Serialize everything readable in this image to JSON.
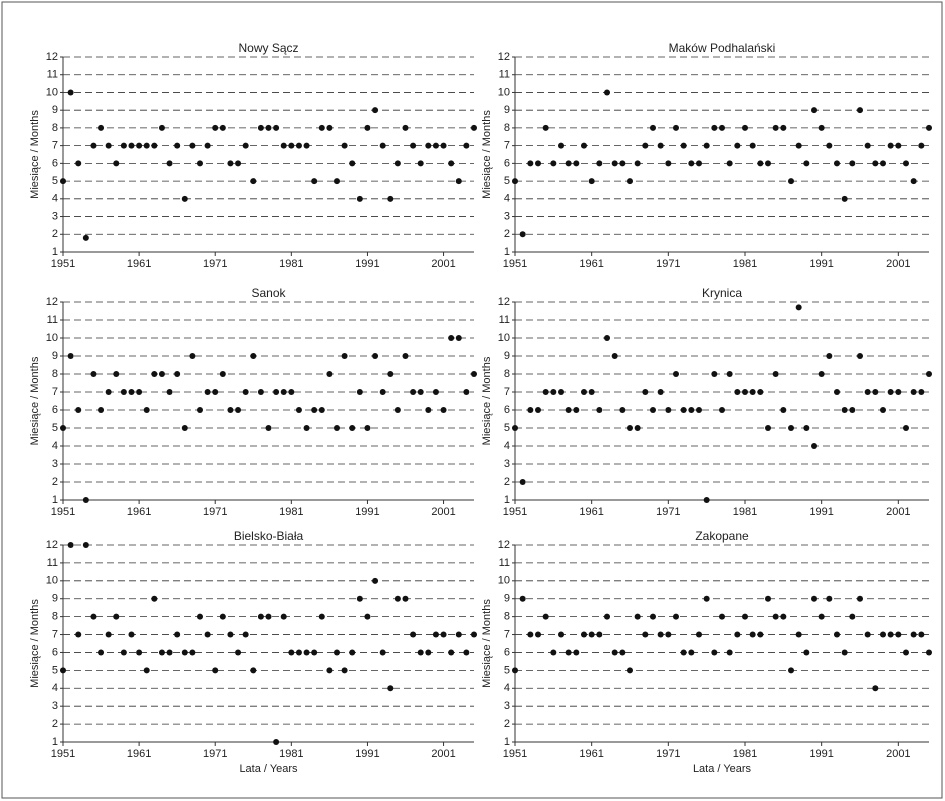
{
  "chart_data": [
    {
      "type": "scatter",
      "title": "Nowy Sącz",
      "y_label": "Miesiące / Months",
      "color": "#111111",
      "grid": true,
      "x": [
        1951,
        1952,
        1953,
        1954,
        1955,
        1956,
        1957,
        1958,
        1959,
        1960,
        1961,
        1962,
        1963,
        1964,
        1965,
        1966,
        1967,
        1968,
        1969,
        1970,
        1971,
        1972,
        1973,
        1974,
        1975,
        1976,
        1977,
        1978,
        1979,
        1980,
        1981,
        1982,
        1983,
        1984,
        1985,
        1986,
        1987,
        1988,
        1989,
        1990,
        1991,
        1992,
        1993,
        1994,
        1995,
        1996,
        1997,
        1998,
        1999,
        2000,
        2001,
        2002,
        2003,
        2004,
        2005
      ],
      "values": [
        5,
        10,
        6,
        1.8,
        7,
        8,
        7,
        6,
        7,
        7,
        7,
        7,
        7,
        8,
        6,
        7,
        4,
        7,
        6,
        7,
        8,
        8,
        6,
        6,
        7,
        5,
        8,
        8,
        8,
        7,
        7,
        7,
        7,
        5,
        8,
        8,
        5,
        7,
        6,
        4,
        8,
        9,
        7,
        4,
        6,
        8,
        7,
        6,
        7,
        7,
        7,
        6,
        5,
        7,
        8
      ],
      "xlim": [
        1951,
        2005
      ],
      "xticks": [
        1951,
        1961,
        1971,
        1981,
        1991,
        2001
      ],
      "ylim": [
        1,
        12
      ],
      "yticks": [
        1,
        2,
        3,
        4,
        5,
        6,
        7,
        8,
        9,
        10,
        11,
        12
      ]
    },
    {
      "type": "scatter",
      "title": "Maków Podhalański",
      "y_label": "Miesiące / Months",
      "color": "#111111",
      "grid": true,
      "x": [
        1951,
        1952,
        1953,
        1954,
        1955,
        1956,
        1957,
        1958,
        1959,
        1960,
        1961,
        1962,
        1963,
        1964,
        1965,
        1966,
        1967,
        1968,
        1969,
        1970,
        1971,
        1972,
        1973,
        1974,
        1975,
        1976,
        1977,
        1978,
        1979,
        1980,
        1981,
        1982,
        1983,
        1984,
        1985,
        1986,
        1987,
        1988,
        1989,
        1990,
        1991,
        1992,
        1993,
        1994,
        1995,
        1996,
        1997,
        1998,
        1999,
        2000,
        2001,
        2002,
        2003,
        2004,
        2005
      ],
      "values": [
        5,
        2,
        6,
        6,
        8,
        6,
        7,
        6,
        6,
        7,
        5,
        6,
        10,
        6,
        6,
        5,
        6,
        7,
        8,
        7,
        6,
        8,
        7,
        6,
        6,
        7,
        8,
        8,
        6,
        7,
        8,
        7,
        6,
        6,
        8,
        8,
        5,
        7,
        6,
        9,
        8,
        7,
        6,
        4,
        6,
        9,
        7,
        6,
        6,
        7,
        7,
        6,
        5,
        7,
        8
      ],
      "xlim": [
        1951,
        2005
      ],
      "xticks": [
        1951,
        1961,
        1971,
        1981,
        1991,
        2001
      ],
      "ylim": [
        1,
        12
      ],
      "yticks": [
        1,
        2,
        3,
        4,
        5,
        6,
        7,
        8,
        9,
        10,
        11,
        12
      ]
    },
    {
      "type": "scatter",
      "title": "Sanok",
      "y_label": "Miesiące / Months",
      "color": "#111111",
      "grid": true,
      "x": [
        1951,
        1952,
        1953,
        1954,
        1955,
        1956,
        1957,
        1958,
        1959,
        1960,
        1961,
        1962,
        1963,
        1964,
        1965,
        1966,
        1967,
        1968,
        1969,
        1970,
        1971,
        1972,
        1973,
        1974,
        1975,
        1976,
        1977,
        1978,
        1979,
        1980,
        1981,
        1982,
        1983,
        1984,
        1985,
        1986,
        1987,
        1988,
        1989,
        1990,
        1991,
        1992,
        1993,
        1994,
        1995,
        1996,
        1997,
        1998,
        1999,
        2000,
        2001,
        2002,
        2003,
        2004,
        2005
      ],
      "values": [
        5,
        9,
        6,
        1,
        8,
        6,
        7,
        8,
        7,
        7,
        7,
        6,
        8,
        8,
        7,
        8,
        5,
        9,
        6,
        7,
        7,
        8,
        6,
        6,
        7,
        9,
        7,
        5,
        7,
        7,
        7,
        6,
        5,
        6,
        6,
        8,
        5,
        9,
        5,
        7,
        5,
        9,
        7,
        8,
        6,
        9,
        7,
        7,
        6,
        7,
        6,
        10,
        10,
        7,
        8
      ],
      "xlim": [
        1951,
        2005
      ],
      "xticks": [
        1951,
        1961,
        1971,
        1981,
        1991,
        2001
      ],
      "ylim": [
        1,
        12
      ],
      "yticks": [
        1,
        2,
        3,
        4,
        5,
        6,
        7,
        8,
        9,
        10,
        11,
        12
      ]
    },
    {
      "type": "scatter",
      "title": "Krynica",
      "y_label": "Miesiące / Months",
      "color": "#111111",
      "grid": true,
      "x": [
        1951,
        1952,
        1953,
        1954,
        1955,
        1956,
        1957,
        1958,
        1959,
        1960,
        1961,
        1962,
        1963,
        1964,
        1965,
        1966,
        1967,
        1968,
        1969,
        1970,
        1971,
        1972,
        1973,
        1974,
        1975,
        1976,
        1977,
        1978,
        1979,
        1980,
        1981,
        1982,
        1983,
        1984,
        1985,
        1986,
        1987,
        1988,
        1989,
        1990,
        1991,
        1992,
        1993,
        1994,
        1995,
        1996,
        1997,
        1998,
        1999,
        2000,
        2001,
        2002,
        2003,
        2004,
        2005
      ],
      "values": [
        5,
        2,
        6,
        6,
        7,
        7,
        7,
        6,
        6,
        7,
        7,
        6,
        10,
        9,
        6,
        5,
        5,
        7,
        6,
        7,
        6,
        8,
        6,
        6,
        6,
        1,
        8,
        6,
        8,
        7,
        7,
        7,
        7,
        5,
        8,
        6,
        5,
        11.7,
        5,
        4,
        8,
        9,
        7,
        6,
        6,
        9,
        7,
        7,
        6,
        7,
        7,
        5,
        7,
        7,
        8
      ],
      "xlim": [
        1951,
        2005
      ],
      "xticks": [
        1951,
        1961,
        1971,
        1981,
        1991,
        2001
      ],
      "ylim": [
        1,
        12
      ],
      "yticks": [
        1,
        2,
        3,
        4,
        5,
        6,
        7,
        8,
        9,
        10,
        11,
        12
      ]
    },
    {
      "type": "scatter",
      "title": "Bielsko-Biała",
      "y_label": "Miesiące / Months",
      "x_label": "Lata / Years",
      "color": "#111111",
      "grid": true,
      "x": [
        1951,
        1952,
        1953,
        1954,
        1955,
        1956,
        1957,
        1958,
        1959,
        1960,
        1961,
        1962,
        1963,
        1964,
        1965,
        1966,
        1967,
        1968,
        1969,
        1970,
        1971,
        1972,
        1973,
        1974,
        1975,
        1976,
        1977,
        1978,
        1979,
        1980,
        1981,
        1982,
        1983,
        1984,
        1985,
        1986,
        1987,
        1988,
        1989,
        1990,
        1991,
        1992,
        1993,
        1994,
        1995,
        1996,
        1997,
        1998,
        1999,
        2000,
        2001,
        2002,
        2003,
        2004,
        2005
      ],
      "values": [
        5,
        12,
        7,
        12,
        8,
        6,
        7,
        8,
        6,
        7,
        6,
        5,
        9,
        6,
        6,
        7,
        6,
        6,
        8,
        7,
        5,
        8,
        7,
        6,
        7,
        5,
        8,
        8,
        1,
        8,
        6,
        6,
        6,
        6,
        8,
        5,
        6,
        5,
        6,
        9,
        8,
        10,
        6,
        4,
        9,
        9,
        7,
        6,
        6,
        7,
        7,
        6,
        7,
        6,
        7
      ],
      "xlim": [
        1951,
        2005
      ],
      "xticks": [
        1951,
        1961,
        1971,
        1981,
        1991,
        2001
      ],
      "ylim": [
        1,
        12
      ],
      "yticks": [
        1,
        2,
        3,
        4,
        5,
        6,
        7,
        8,
        9,
        10,
        11,
        12
      ]
    },
    {
      "type": "scatter",
      "title": "Zakopane",
      "y_label": "Miesiące / Months",
      "x_label": "Lata / Years",
      "color": "#111111",
      "grid": true,
      "x": [
        1951,
        1952,
        1953,
        1954,
        1955,
        1956,
        1957,
        1958,
        1959,
        1960,
        1961,
        1962,
        1963,
        1964,
        1965,
        1966,
        1967,
        1968,
        1969,
        1970,
        1971,
        1972,
        1973,
        1974,
        1975,
        1976,
        1977,
        1978,
        1979,
        1980,
        1981,
        1982,
        1983,
        1984,
        1985,
        1986,
        1987,
        1988,
        1989,
        1990,
        1991,
        1992,
        1993,
        1994,
        1995,
        1996,
        1997,
        1998,
        1999,
        2000,
        2001,
        2002,
        2003,
        2004,
        2005
      ],
      "values": [
        5,
        9,
        7,
        7,
        8,
        6,
        7,
        6,
        6,
        7,
        7,
        7,
        8,
        6,
        6,
        5,
        8,
        7,
        8,
        7,
        7,
        8,
        6,
        6,
        7,
        9,
        6,
        8,
        6,
        7,
        8,
        7,
        7,
        9,
        8,
        8,
        5,
        7,
        6,
        9,
        8,
        9,
        7,
        6,
        8,
        9,
        7,
        4,
        7,
        7,
        7,
        6,
        7,
        7,
        6
      ],
      "xlim": [
        1951,
        2005
      ],
      "xticks": [
        1951,
        1961,
        1971,
        1981,
        1991,
        2001
      ],
      "ylim": [
        1,
        12
      ],
      "yticks": [
        1,
        2,
        3,
        4,
        5,
        6,
        7,
        8,
        9,
        10,
        11,
        12
      ]
    }
  ]
}
